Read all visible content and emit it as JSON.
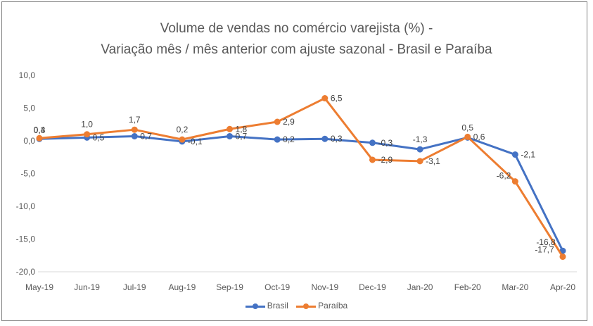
{
  "chart_data": {
    "type": "line",
    "title": "Volume de vendas no comércio varejista (%) -",
    "subtitle": "Variação mês / mês anterior com ajuste sazonal - Brasil e Paraíba",
    "categories": [
      "May-19",
      "Jun-19",
      "Jul-19",
      "Aug-19",
      "Sep-19",
      "Oct-19",
      "Nov-19",
      "Dec-19",
      "Jan-20",
      "Feb-20",
      "Mar-20",
      "Apr-20"
    ],
    "ylim": [
      -20,
      10
    ],
    "yticks": [
      "10,0",
      "5,0",
      "0,0",
      "-5,0",
      "-10,0",
      "-15,0",
      "-20,0"
    ],
    "grid": false,
    "legend_position": "bottom",
    "series": [
      {
        "name": "Brasil",
        "color": "#4472c4",
        "values": [
          0.3,
          0.5,
          0.7,
          -0.1,
          0.7,
          0.2,
          0.3,
          -0.3,
          -1.3,
          0.5,
          -2.1,
          -16.8
        ],
        "labels": [
          "0,3",
          "0,5",
          "0,7",
          "-0,1",
          "0,7",
          "0,2",
          "0,3",
          "-0,3",
          "-1,3",
          "0,5",
          "-2,1",
          "-16,8"
        ]
      },
      {
        "name": "Paraíba",
        "color": "#ed7d31",
        "values": [
          0.4,
          1.0,
          1.7,
          0.2,
          1.8,
          2.9,
          6.5,
          -2.9,
          -3.1,
          0.6,
          -6.2,
          -17.7
        ],
        "labels": [
          "0,4",
          "1,0",
          "1,7",
          "0,2",
          "1,8",
          "2,9",
          "6,5",
          "-2,9",
          "-3,1",
          "0,6",
          "-6,2",
          "-17,7"
        ]
      }
    ]
  }
}
